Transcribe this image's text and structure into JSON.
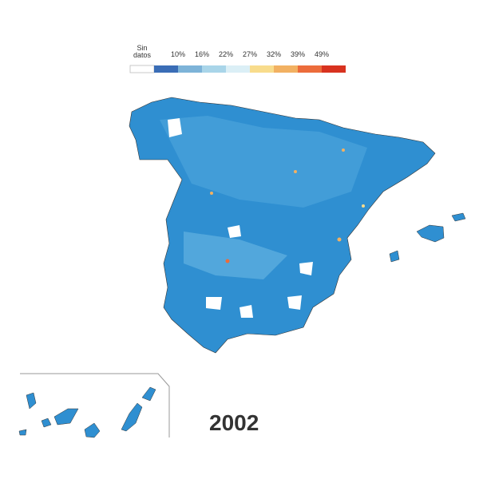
{
  "legend": {
    "no_data": "Sin datos",
    "breaks": [
      "10%",
      "16%",
      "22%",
      "27%",
      "32%",
      "39%",
      "49%"
    ],
    "colors": [
      "#3a6db6",
      "#7db3d8",
      "#a9d5e9",
      "#dbeff6",
      "#f8dc8c",
      "#f2b162",
      "#ec6c3b",
      "#d8321f"
    ]
  },
  "year": "2002"
}
